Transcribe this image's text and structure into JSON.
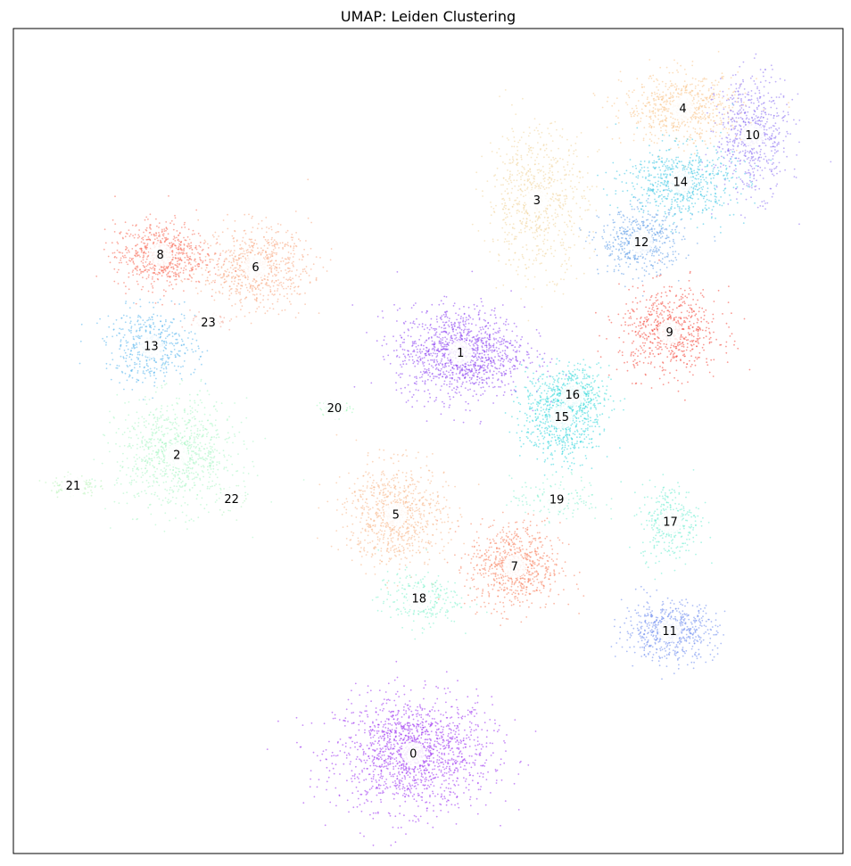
{
  "chart_data": {
    "type": "scatter",
    "title": "UMAP: Leiden Clustering",
    "xlabel": "",
    "ylabel": "",
    "xlim": [
      0,
      100
    ],
    "ylim": [
      0,
      100
    ],
    "axis_ticks": false,
    "grid": false,
    "legend": "none",
    "point_alpha": 0.55,
    "clusters": [
      {
        "label": "0",
        "color": "#9a2ff0",
        "center": [
          48.2,
          12.1
        ],
        "spread": [
          8.5,
          6.2
        ],
        "count": 1500
      },
      {
        "label": "1",
        "color": "#8a3ff0",
        "center": [
          53.9,
          60.7
        ],
        "spread": [
          7.0,
          5.0
        ],
        "count": 1200
      },
      {
        "label": "2",
        "color": "#a9f5c4",
        "center": [
          19.7,
          48.3
        ],
        "spread": [
          6.5,
          6.0
        ],
        "count": 900
      },
      {
        "label": "3",
        "color": "#f0d49a",
        "center": [
          63.1,
          79.2
        ],
        "spread": [
          5.5,
          8.0
        ],
        "count": 700
      },
      {
        "label": "4",
        "color": "#f9c48a",
        "center": [
          80.7,
          90.3
        ],
        "spread": [
          6.5,
          3.8
        ],
        "count": 650
      },
      {
        "label": "5",
        "color": "#f7b688",
        "center": [
          46.1,
          41.1
        ],
        "spread": [
          5.5,
          5.5
        ],
        "count": 800
      },
      {
        "label": "6",
        "color": "#f8a882",
        "center": [
          29.2,
          71.1
        ],
        "spread": [
          6.0,
          4.5
        ],
        "count": 700
      },
      {
        "label": "7",
        "color": "#f8805c",
        "center": [
          60.4,
          34.8
        ],
        "spread": [
          5.0,
          4.8
        ],
        "count": 700
      },
      {
        "label": "8",
        "color": "#f86a55",
        "center": [
          17.7,
          72.6
        ],
        "spread": [
          5.0,
          3.6
        ],
        "count": 650
      },
      {
        "label": "9",
        "color": "#f4473a",
        "center": [
          79.1,
          63.2
        ],
        "spread": [
          5.5,
          4.8
        ],
        "count": 650
      },
      {
        "label": "10",
        "color": "#8a6ff2",
        "center": [
          89.1,
          87.1
        ],
        "spread": [
          4.0,
          6.5
        ],
        "count": 600
      },
      {
        "label": "11",
        "color": "#6c8aee",
        "center": [
          79.1,
          27.0
        ],
        "spread": [
          5.0,
          3.2
        ],
        "count": 600
      },
      {
        "label": "12",
        "color": "#5f9ce8",
        "center": [
          75.7,
          74.1
        ],
        "spread": [
          4.5,
          3.5
        ],
        "count": 500
      },
      {
        "label": "13",
        "color": "#56b4ec",
        "center": [
          16.6,
          61.5
        ],
        "spread": [
          5.0,
          4.0
        ],
        "count": 450
      },
      {
        "label": "14",
        "color": "#3cc7e4",
        "center": [
          80.4,
          81.4
        ],
        "spread": [
          6.0,
          4.0
        ],
        "count": 650
      },
      {
        "label": "15",
        "color": "#2fd6dc",
        "center": [
          66.1,
          52.9
        ],
        "spread": [
          4.2,
          5.0
        ],
        "count": 650
      },
      {
        "label": "16",
        "color": "#40dcd8",
        "center": [
          67.4,
          55.6
        ],
        "spread": [
          4.0,
          3.2
        ],
        "count": 300
      },
      {
        "label": "17",
        "color": "#6aedcf",
        "center": [
          79.2,
          40.2
        ],
        "spread": [
          3.2,
          4.2
        ],
        "count": 320
      },
      {
        "label": "18",
        "color": "#7ef2cc",
        "center": [
          48.9,
          30.9
        ],
        "spread": [
          4.5,
          3.0
        ],
        "count": 250
      },
      {
        "label": "19",
        "color": "#86f0d0",
        "center": [
          65.5,
          42.9
        ],
        "spread": [
          5.0,
          2.5
        ],
        "count": 140
      },
      {
        "label": "20",
        "color": "#a0f7ba",
        "center": [
          38.7,
          54.0
        ],
        "spread": [
          1.6,
          0.8
        ],
        "count": 110
      },
      {
        "label": "21",
        "color": "#b8f3b8",
        "center": [
          7.2,
          44.6
        ],
        "spread": [
          2.5,
          1.2
        ],
        "count": 110
      },
      {
        "label": "22",
        "color": "#b2f3c0",
        "center": [
          26.3,
          43.0
        ],
        "spread": [
          1.8,
          1.5
        ],
        "count": 50
      },
      {
        "label": "23",
        "color": "#f2a090",
        "center": [
          23.5,
          64.4
        ],
        "spread": [
          2.0,
          1.2
        ],
        "count": 50
      }
    ]
  }
}
